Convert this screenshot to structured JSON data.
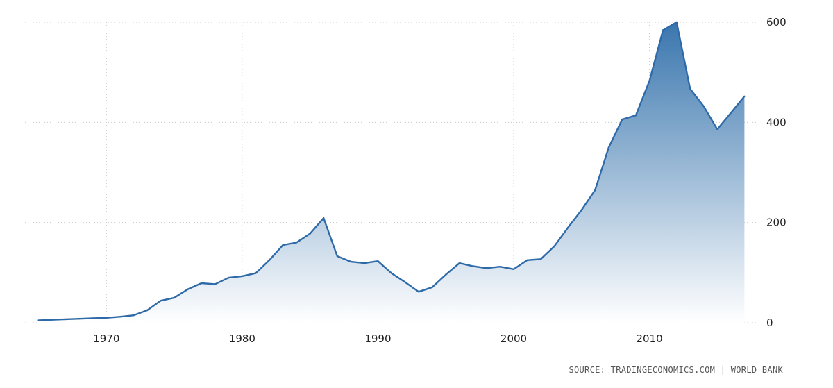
{
  "source_label": "SOURCE: TRADINGECONOMICS.COM | WORLD BANK",
  "colors": {
    "line": "#2f6aa8",
    "fill_top": "#3a76ae",
    "fill_bottom": "#ffffff",
    "grid": "#c8c8c8"
  },
  "chart_data": {
    "type": "area",
    "title": "",
    "xlabel": "",
    "ylabel": "",
    "xlim": [
      1964,
      2018
    ],
    "ylim": [
      0,
      600
    ],
    "x_ticks": [
      1970,
      1980,
      1990,
      2000,
      2010
    ],
    "y_ticks": [
      0,
      200,
      400,
      600
    ],
    "y_axis_position": "right",
    "grid": true,
    "series": [
      {
        "x": [
          1965,
          1966,
          1967,
          1968,
          1969,
          1970,
          1971,
          1972,
          1973,
          1974,
          1975,
          1976,
          1977,
          1978,
          1979,
          1980,
          1981,
          1982,
          1983,
          1984,
          1985,
          1986,
          1987,
          1988,
          1989,
          1990,
          1991,
          1992,
          1993,
          1994,
          1995,
          1996,
          1997,
          1998,
          1999,
          2000,
          2001,
          2002,
          2003,
          2004,
          2005,
          2006,
          2007,
          2008,
          2009,
          2010,
          2011,
          2012,
          2013,
          2014,
          2015,
          2016,
          2017
        ],
        "values": [
          5,
          6,
          7,
          8,
          9,
          10,
          12,
          15,
          25,
          44,
          50,
          67,
          79,
          77,
          90,
          93,
          99,
          125,
          155,
          160,
          178,
          209,
          133,
          122,
          119,
          123,
          99,
          81,
          62,
          71,
          96,
          119,
          113,
          109,
          112,
          107,
          125,
          127,
          153,
          190,
          225,
          265,
          350,
          406,
          414,
          483,
          584,
          600,
          467,
          432,
          386,
          419,
          452
        ]
      }
    ]
  }
}
